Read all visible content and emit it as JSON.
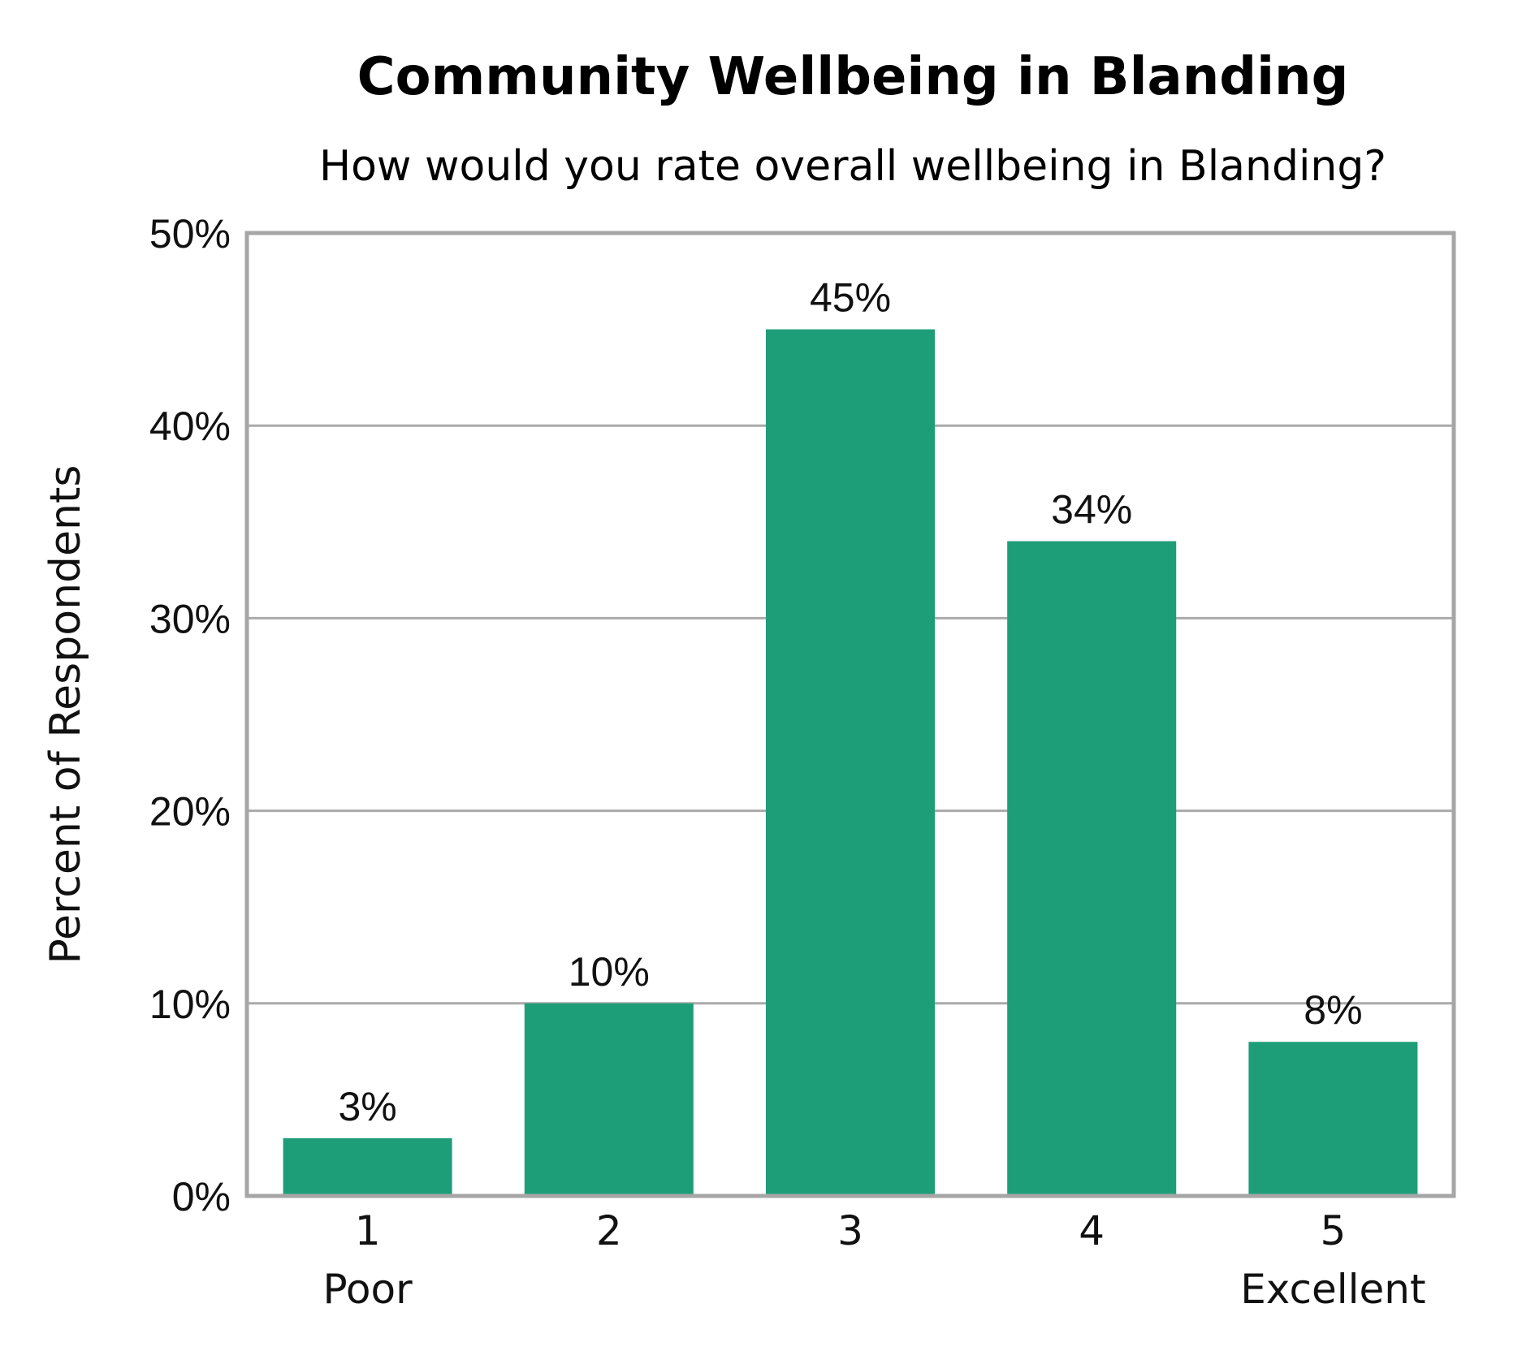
{
  "chart_data": {
    "type": "bar",
    "title": "Community Wellbeing in Blanding",
    "subtitle": "How would you rate overall wellbeing in Blanding?",
    "xlabel": "",
    "ylabel": "Percent of Respondents",
    "categories": [
      "1",
      "2",
      "3",
      "4",
      "5"
    ],
    "category_sublabels": [
      "Poor",
      "",
      "",
      "",
      "Excellent"
    ],
    "values": [
      3,
      10,
      45,
      34,
      8
    ],
    "value_labels": [
      "3%",
      "10%",
      "45%",
      "34%",
      "8%"
    ],
    "ylim": [
      0,
      50
    ],
    "yticks": [
      0,
      10,
      20,
      30,
      40,
      50
    ],
    "ytick_labels": [
      "0%",
      "10%",
      "20%",
      "30%",
      "40%",
      "50%"
    ],
    "grid": true,
    "bar_color": "#1e9e78",
    "grid_color": "#aaaaaa",
    "frame_color": "#a6a6a6"
  }
}
